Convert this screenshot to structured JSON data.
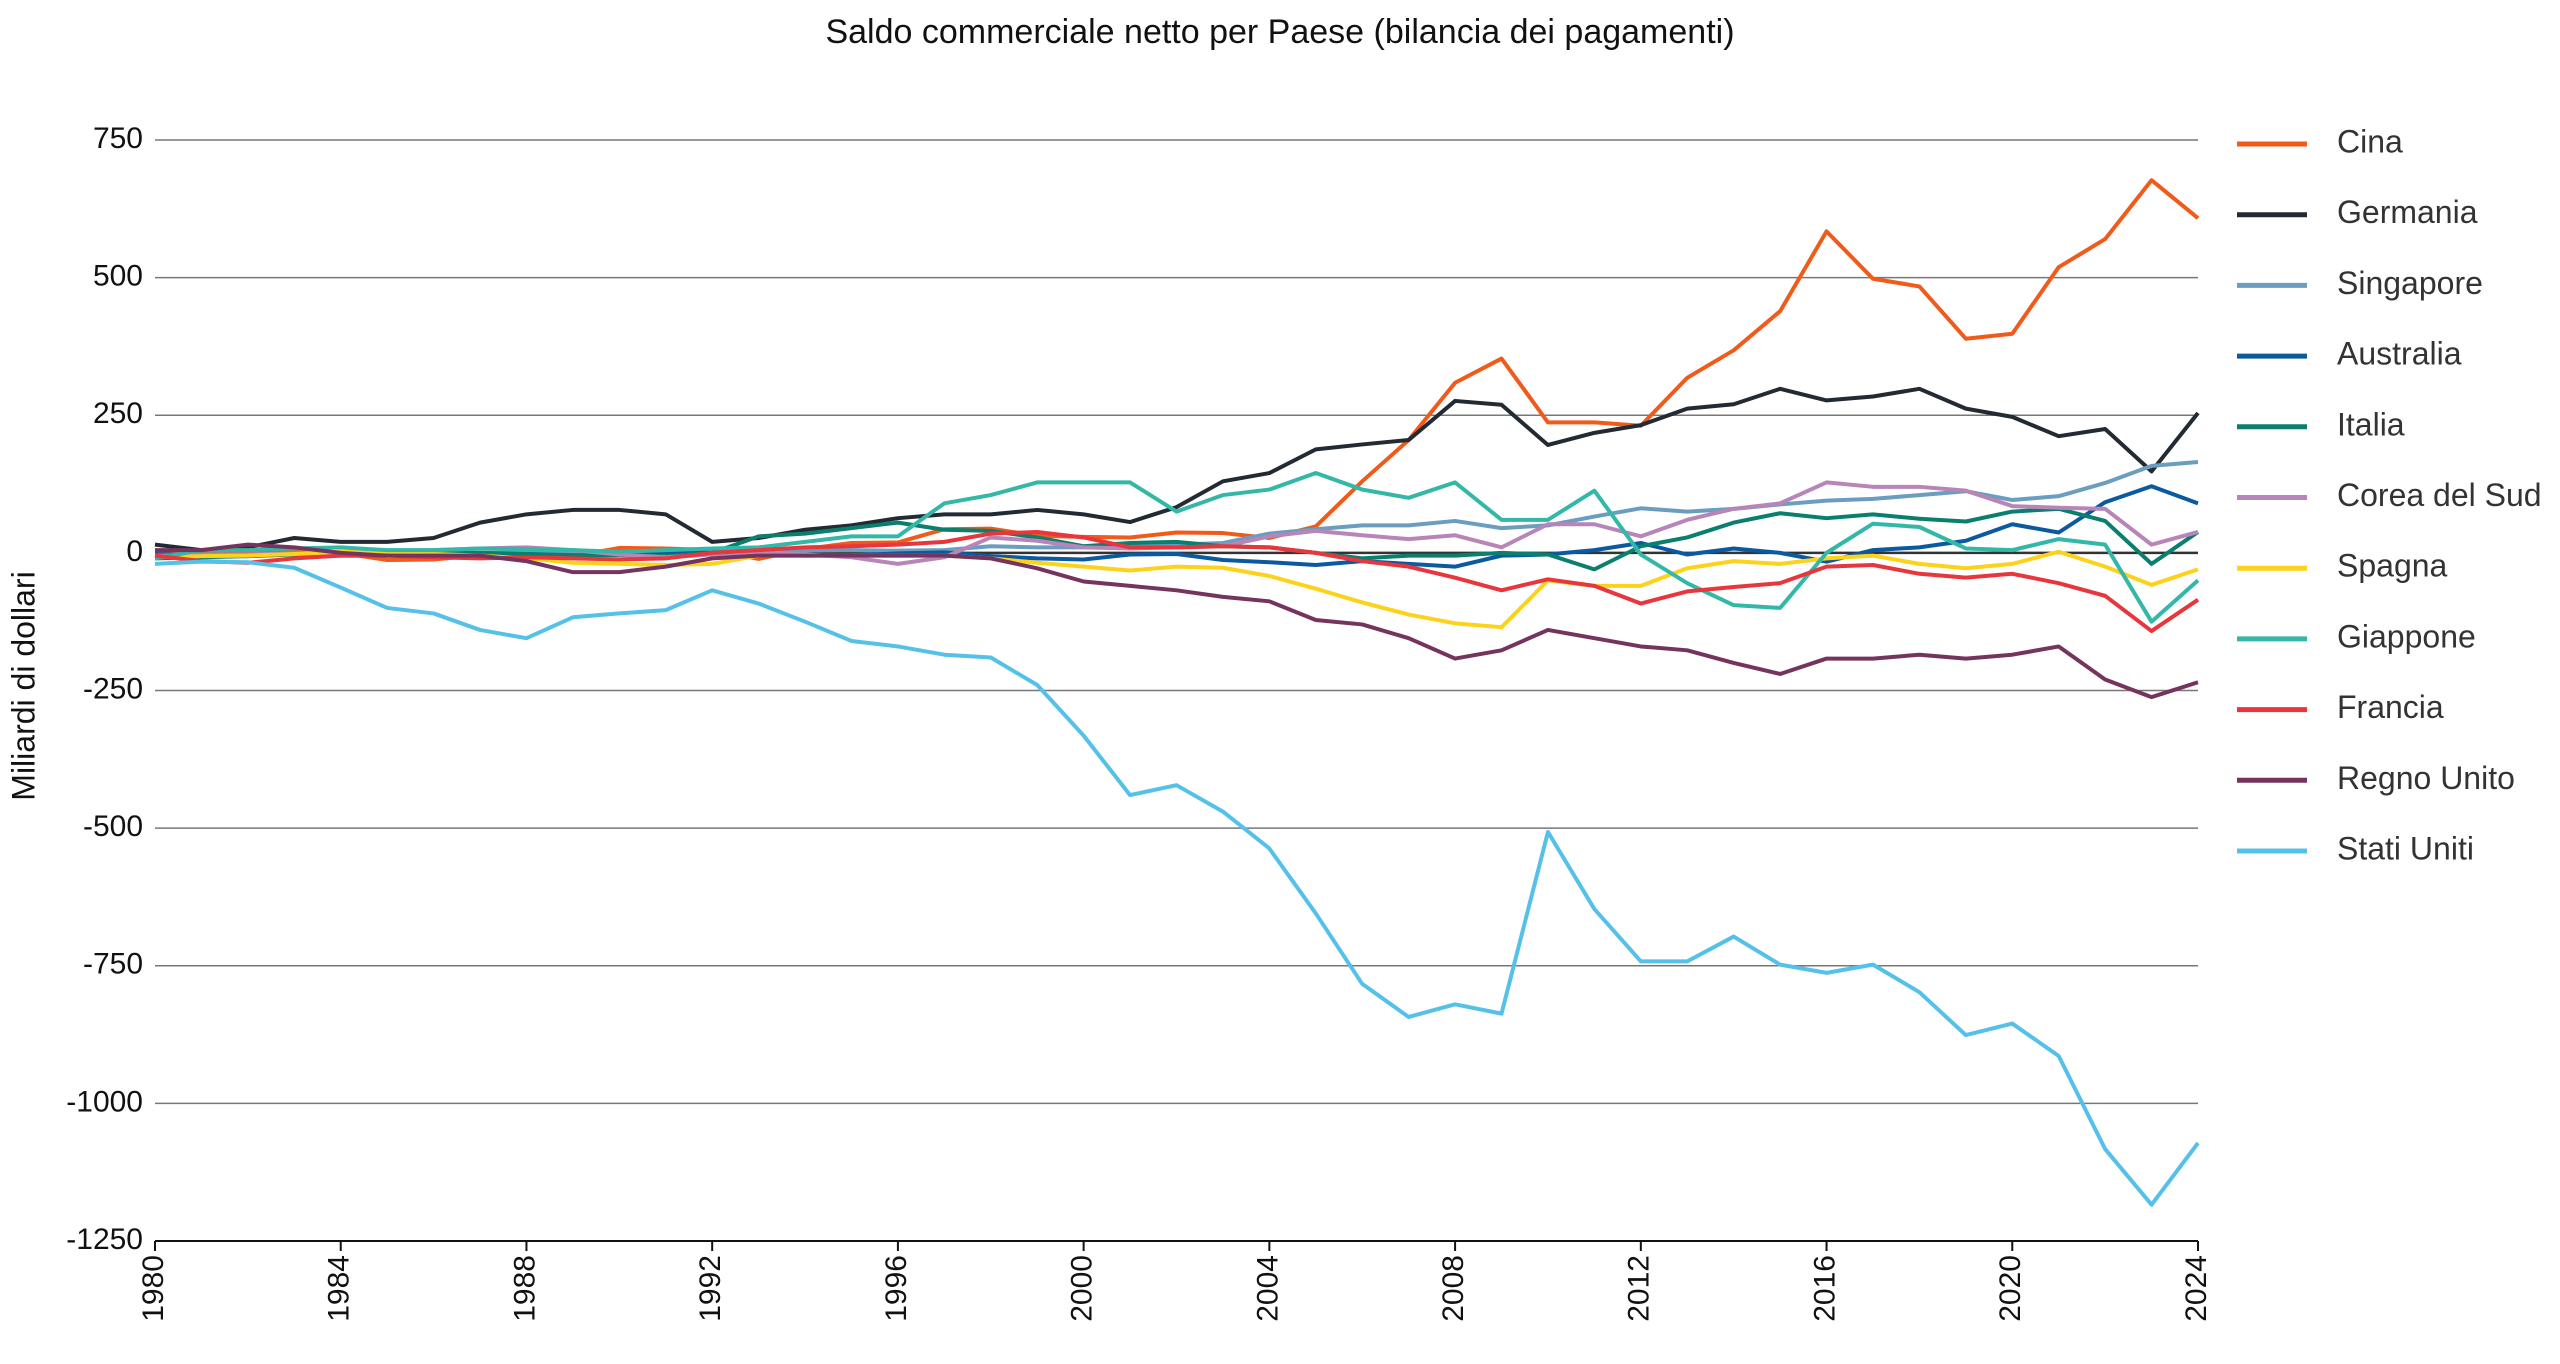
{
  "chart_data": {
    "type": "line",
    "title": "Saldo commerciale netto per Paese (bilancia dei pagamenti)",
    "y_label": "Miliardi di dollari",
    "x": [
      1980,
      1981,
      1982,
      1983,
      1984,
      1985,
      1986,
      1987,
      1988,
      1989,
      1990,
      1991,
      1992,
      1993,
      1994,
      1995,
      1996,
      1997,
      1998,
      1999,
      2000,
      2001,
      2002,
      2003,
      2004,
      2005,
      2006,
      2007,
      2008,
      2009,
      2010,
      2011,
      2012,
      2013,
      2014,
      2015,
      2016,
      2017,
      2018,
      2019,
      2020,
      2021,
      2022,
      2023,
      2024
    ],
    "xlim": [
      1980,
      2024
    ],
    "xticks": [
      1980,
      1984,
      1988,
      1992,
      1996,
      2000,
      2004,
      2008,
      2012,
      2016,
      2020,
      2024
    ],
    "ylim": [
      -1250,
      750
    ],
    "yticks": [
      -1250,
      -1000,
      -750,
      -500,
      -250,
      0,
      250,
      500,
      750
    ],
    "grid": true,
    "legend": "right",
    "series": [
      {
        "name": "Cina",
        "color": "#f05a1a",
        "values": [
          -2,
          0,
          4,
          2,
          0,
          -13,
          -12,
          -4,
          -5,
          -6,
          9,
          8,
          5,
          -11,
          7,
          18,
          19,
          43,
          44,
          31,
          29,
          28,
          37,
          36,
          27,
          48,
          130,
          205,
          309,
          353,
          237,
          237,
          231,
          318,
          368,
          439,
          584,
          498,
          484,
          389,
          398,
          519,
          570,
          677,
          608
        ]
      },
      {
        "name": "Germania",
        "color": "#222a33",
        "values": [
          15,
          5,
          10,
          27,
          20,
          20,
          27,
          55,
          70,
          78,
          78,
          70,
          20,
          27,
          42,
          50,
          63,
          70,
          70,
          78,
          70,
          56,
          83,
          130,
          145,
          188,
          197,
          205,
          276,
          269,
          196,
          218,
          232,
          262,
          270,
          298,
          277,
          284,
          298,
          262,
          247,
          212,
          225,
          148,
          254
        ]
      },
      {
        "name": "Singapore",
        "color": "#6a9ec0",
        "values": [
          -3,
          -3,
          -3,
          -2,
          -2,
          -1,
          -1,
          0,
          1,
          2,
          1,
          0,
          1,
          2,
          4,
          5,
          4,
          5,
          12,
          10,
          10,
          12,
          15,
          18,
          35,
          43,
          50,
          50,
          58,
          45,
          50,
          66,
          81,
          75,
          80,
          88,
          95,
          98,
          105,
          112,
          96,
          103,
          127,
          158,
          165
        ]
      },
      {
        "name": "Australia",
        "color": "#0b5aa0",
        "values": [
          -2,
          -5,
          -6,
          -1,
          -3,
          -2,
          -3,
          -2,
          -2,
          -6,
          -2,
          2,
          0,
          -1,
          -5,
          -4,
          -1,
          1,
          -6,
          -10,
          -12,
          -3,
          -2,
          -13,
          -17,
          -22,
          -15,
          -20,
          -25,
          -5,
          -3,
          5,
          18,
          -3,
          8,
          0,
          -16,
          5,
          10,
          22,
          52,
          37,
          92,
          121,
          90
        ]
      },
      {
        "name": "Italia",
        "color": "#0a7f6e",
        "values": [
          -10,
          -8,
          -6,
          -3,
          -5,
          -5,
          2,
          0,
          -2,
          -4,
          -4,
          -6,
          0,
          30,
          35,
          45,
          55,
          42,
          40,
          28,
          12,
          18,
          20,
          12,
          10,
          0,
          -10,
          -5,
          -5,
          0,
          -3,
          -30,
          12,
          28,
          55,
          72,
          63,
          70,
          62,
          57,
          75,
          80,
          58,
          -20,
          38
        ]
      },
      {
        "name": "Corea del Sud",
        "color": "#b785b8",
        "values": [
          -5,
          -4,
          -3,
          -1,
          0,
          0,
          5,
          8,
          10,
          5,
          -3,
          -8,
          -3,
          2,
          -3,
          -8,
          -20,
          -8,
          28,
          22,
          10,
          8,
          10,
          12,
          30,
          40,
          32,
          25,
          32,
          10,
          52,
          52,
          30,
          60,
          80,
          90,
          128,
          120,
          120,
          113,
          85,
          82,
          80,
          15,
          38
        ]
      },
      {
        "name": "Spagna",
        "color": "#fcd21a",
        "values": [
          -8,
          -6,
          -5,
          -2,
          2,
          2,
          -2,
          -5,
          -10,
          -18,
          -20,
          -22,
          -20,
          -5,
          -5,
          -5,
          -5,
          -5,
          -10,
          -18,
          -25,
          -32,
          -25,
          -27,
          -42,
          -65,
          -90,
          -112,
          -128,
          -135,
          -50,
          -60,
          -60,
          -28,
          -15,
          -20,
          -10,
          -5,
          -20,
          -28,
          -20,
          2,
          -25,
          -58,
          -30
        ]
      },
      {
        "name": "Giappone",
        "color": "#33b8a8",
        "values": [
          -10,
          5,
          5,
          8,
          10,
          5,
          5,
          8,
          7,
          5,
          2,
          5,
          8,
          10,
          20,
          30,
          30,
          90,
          105,
          128,
          128,
          128,
          75,
          105,
          115,
          145,
          115,
          100,
          128,
          60,
          60,
          113,
          -3,
          -55,
          -95,
          -100,
          0,
          53,
          47,
          8,
          5,
          25,
          15,
          -125,
          -50
        ]
      },
      {
        "name": "Francia",
        "color": "#e8363d",
        "values": [
          -5,
          -15,
          -18,
          -10,
          -5,
          -5,
          -8,
          -10,
          -8,
          -10,
          -12,
          -10,
          0,
          5,
          10,
          12,
          15,
          20,
          35,
          38,
          28,
          10,
          10,
          12,
          10,
          0,
          -15,
          -25,
          -45,
          -68,
          -48,
          -60,
          -92,
          -70,
          -62,
          -55,
          -25,
          -22,
          -38,
          -45,
          -38,
          -55,
          -78,
          -142,
          -85
        ]
      },
      {
        "name": "Regno Unito",
        "color": "#74345e",
        "values": [
          5,
          5,
          15,
          10,
          0,
          -5,
          -5,
          -5,
          -15,
          -35,
          -35,
          -25,
          -10,
          -5,
          -5,
          -5,
          -5,
          -5,
          -10,
          -28,
          -52,
          -60,
          -68,
          -80,
          -88,
          -122,
          -130,
          -155,
          -192,
          -177,
          -140,
          -155,
          -170,
          -177,
          -200,
          -220,
          -192,
          -192,
          -185,
          -192,
          -185,
          -170,
          -230,
          -262,
          -235
        ]
      },
      {
        "name": "Stati Uniti",
        "color": "#55c1e8",
        "values": [
          -20,
          -16,
          -17,
          -27,
          -63,
          -100,
          -110,
          -140,
          -155,
          -117,
          -110,
          -104,
          -68,
          -92,
          -125,
          -160,
          -170,
          -185,
          -190,
          -240,
          -332,
          -440,
          -422,
          -470,
          -537,
          -655,
          -783,
          -843,
          -820,
          -837,
          -507,
          -647,
          -742,
          -742,
          -697,
          -748,
          -763,
          -748,
          -798,
          -876,
          -855,
          -914,
          -1083,
          -1184,
          -1072
        ]
      }
    ]
  }
}
